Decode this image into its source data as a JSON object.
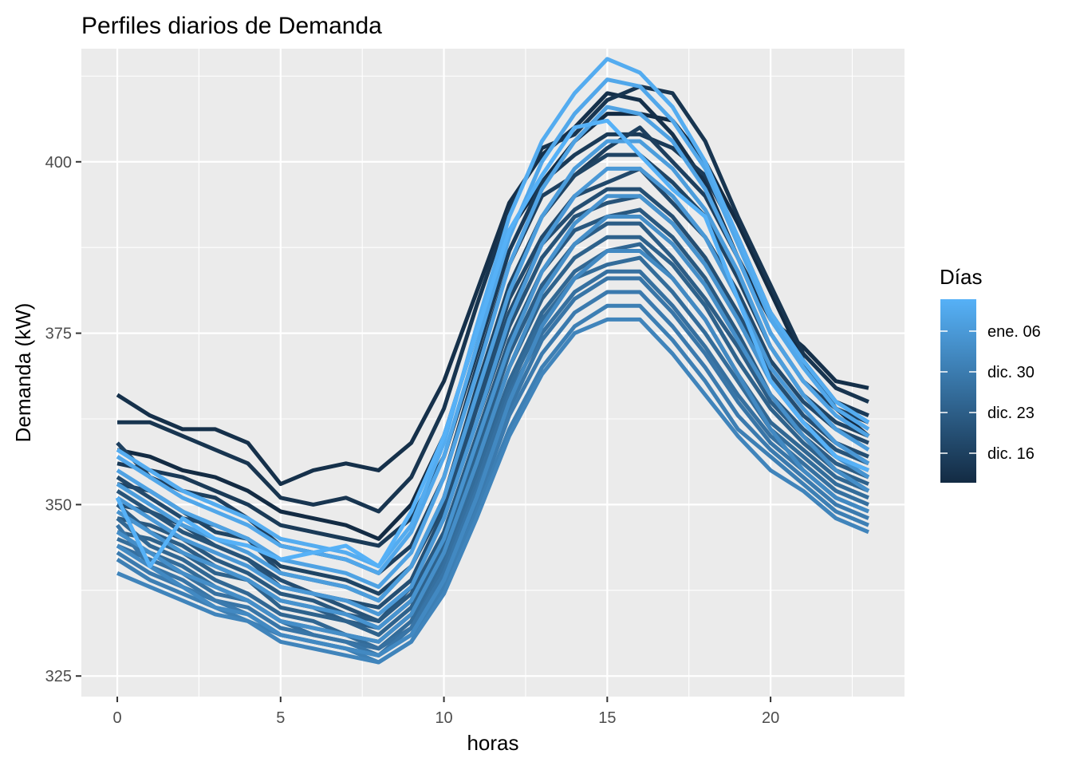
{
  "chart_data": {
    "type": "line",
    "title": "Perfiles diarios de Demanda",
    "xlabel": "horas",
    "ylabel": "Demanda (kW)",
    "xlim": [
      -1.1,
      24.1
    ],
    "ylim": [
      322,
      416.5
    ],
    "x_ticks": [
      0,
      5,
      10,
      15,
      20
    ],
    "y_ticks": [
      325,
      350,
      375,
      400
    ],
    "grid": true,
    "legend": {
      "title": "Días",
      "position": "right",
      "labels": [
        "dic. 16",
        "dic. 23",
        "dic. 30",
        "ene. 06"
      ],
      "color_low": "#132B43",
      "color_high": "#56B1F7"
    },
    "x": [
      0,
      1,
      2,
      3,
      4,
      5,
      6,
      7,
      8,
      9,
      10,
      11,
      12,
      13,
      14,
      15,
      16,
      17,
      18,
      19,
      20,
      21,
      22,
      23
    ],
    "series": [
      {
        "values": [
          358,
          357,
          355,
          354,
          352,
          349,
          348,
          347,
          345,
          350,
          360,
          375,
          390,
          397,
          403,
          407,
          407,
          406,
          400,
          391,
          381,
          371,
          364,
          360
        ]
      },
      {
        "values": [
          366,
          363,
          361,
          361,
          359,
          353,
          355,
          356,
          355,
          359,
          368,
          381,
          394,
          401,
          405,
          410,
          409,
          404,
          397,
          386,
          377,
          373,
          368,
          367
        ]
      },
      {
        "values": [
          362,
          362,
          360,
          358,
          356,
          351,
          350,
          351,
          349,
          354,
          364,
          379,
          393,
          402,
          404,
          409,
          411,
          410,
          403,
          392,
          382,
          372,
          367,
          365
        ]
      },
      {
        "values": [
          356,
          355,
          354,
          352,
          350,
          347,
          346,
          345,
          344,
          348,
          357,
          372,
          387,
          397,
          401,
          404,
          404,
          402,
          398,
          389,
          378,
          371,
          365,
          363
        ]
      },
      {
        "values": [
          359,
          354,
          352,
          351,
          348,
          344,
          343,
          342,
          340,
          344,
          354,
          370,
          385,
          395,
          398,
          402,
          405,
          400,
          395,
          386,
          375,
          368,
          364,
          362
        ]
      },
      {
        "values": [
          353,
          352,
          349,
          346,
          345,
          341,
          340,
          339,
          337,
          341,
          351,
          367,
          382,
          392,
          398,
          401,
          401,
          397,
          392,
          383,
          373,
          366,
          362,
          360
        ]
      },
      {
        "values": [
          354,
          351,
          348,
          347,
          345,
          340,
          339,
          338,
          336,
          341,
          350,
          365,
          380,
          389,
          395,
          397,
          399,
          394,
          389,
          381,
          371,
          365,
          361,
          359
        ]
      },
      {
        "values": [
          350,
          349,
          347,
          344,
          342,
          339,
          337,
          336,
          335,
          339,
          349,
          364,
          378,
          388,
          393,
          396,
          396,
          392,
          386,
          378,
          369,
          363,
          359,
          357
        ]
      },
      {
        "values": [
          352,
          349,
          346,
          344,
          342,
          338,
          337,
          335,
          333,
          338,
          348,
          362,
          376,
          386,
          392,
          394,
          395,
          391,
          385,
          377,
          368,
          362,
          358,
          356
        ]
      },
      {
        "values": [
          348,
          347,
          345,
          342,
          340,
          337,
          336,
          334,
          333,
          337,
          346,
          360,
          374,
          384,
          390,
          392,
          393,
          389,
          383,
          375,
          366,
          361,
          357,
          355
        ]
      },
      {
        "values": [
          350,
          346,
          344,
          341,
          339,
          336,
          335,
          333,
          332,
          336,
          345,
          358,
          372,
          382,
          388,
          391,
          391,
          386,
          380,
          373,
          365,
          360,
          356,
          354
        ]
      },
      {
        "values": [
          346,
          345,
          343,
          340,
          339,
          335,
          334,
          333,
          331,
          335,
          344,
          357,
          370,
          380,
          386,
          389,
          389,
          385,
          379,
          371,
          364,
          359,
          355,
          353
        ]
      },
      {
        "values": [
          348,
          344,
          342,
          339,
          337,
          334,
          333,
          331,
          330,
          334,
          343,
          355,
          368,
          378,
          384,
          387,
          388,
          383,
          377,
          369,
          362,
          358,
          354,
          352
        ]
      },
      {
        "values": [
          345,
          343,
          341,
          338,
          336,
          333,
          332,
          331,
          329,
          333,
          342,
          354,
          367,
          377,
          383,
          385,
          386,
          381,
          375,
          368,
          361,
          357,
          353,
          351
        ]
      },
      {
        "values": [
          344,
          342,
          340,
          337,
          336,
          333,
          331,
          330,
          329,
          332,
          341,
          353,
          366,
          375,
          381,
          384,
          384,
          379,
          373,
          366,
          360,
          356,
          352,
          350
        ]
      },
      {
        "values": [
          347,
          341,
          339,
          336,
          335,
          332,
          331,
          330,
          328,
          332,
          340,
          352,
          364,
          374,
          380,
          383,
          383,
          378,
          372,
          365,
          359,
          355,
          351,
          349
        ]
      },
      {
        "values": [
          343,
          340,
          338,
          336,
          334,
          331,
          330,
          329,
          328,
          331,
          339,
          350,
          363,
          372,
          378,
          381,
          381,
          376,
          370,
          363,
          358,
          354,
          350,
          348
        ]
      },
      {
        "values": [
          342,
          339,
          337,
          335,
          333,
          331,
          330,
          329,
          327,
          330,
          338,
          349,
          361,
          370,
          376,
          379,
          379,
          374,
          368,
          361,
          357,
          353,
          349,
          347
        ]
      },
      {
        "values": [
          340,
          338,
          336,
          334,
          333,
          330,
          329,
          328,
          327,
          330,
          337,
          348,
          360,
          369,
          375,
          377,
          377,
          372,
          366,
          360,
          355,
          352,
          348,
          346
        ]
      },
      {
        "values": [
          344,
          341,
          338,
          335,
          334,
          331,
          330,
          329,
          328,
          331,
          339,
          351,
          365,
          376,
          383,
          387,
          387,
          383,
          377,
          369,
          361,
          355,
          351,
          349
        ]
      },
      {
        "values": [
          346,
          343,
          340,
          338,
          336,
          333,
          332,
          331,
          330,
          334,
          343,
          356,
          370,
          381,
          388,
          392,
          392,
          388,
          382,
          374,
          366,
          360,
          355,
          352
        ]
      },
      {
        "values": [
          349,
          346,
          343,
          341,
          339,
          336,
          335,
          334,
          332,
          336,
          345,
          359,
          373,
          384,
          391,
          395,
          395,
          391,
          385,
          377,
          368,
          362,
          357,
          354
        ]
      },
      {
        "values": [
          351,
          348,
          345,
          343,
          341,
          338,
          337,
          336,
          334,
          338,
          348,
          362,
          377,
          388,
          395,
          399,
          399,
          395,
          389,
          380,
          370,
          364,
          359,
          356
        ]
      },
      {
        "values": [
          353,
          350,
          347,
          345,
          343,
          340,
          339,
          338,
          336,
          341,
          351,
          366,
          381,
          392,
          399,
          403,
          403,
          399,
          393,
          384,
          373,
          366,
          361,
          358
        ]
      },
      {
        "values": [
          355,
          352,
          349,
          347,
          345,
          342,
          341,
          340,
          338,
          343,
          354,
          369,
          385,
          396,
          403,
          408,
          407,
          403,
          396,
          386,
          375,
          368,
          363,
          360
        ]
      },
      {
        "values": [
          357,
          354,
          351,
          349,
          347,
          344,
          343,
          342,
          340,
          346,
          357,
          373,
          389,
          400,
          407,
          412,
          411,
          406,
          399,
          388,
          377,
          370,
          364,
          361
        ]
      },
      {
        "values": [
          358,
          355,
          352,
          350,
          348,
          345,
          344,
          343,
          341,
          347,
          359,
          376,
          392,
          403,
          410,
          415,
          413,
          408,
          400,
          389,
          378,
          371,
          365,
          362
        ]
      },
      {
        "values": [
          351,
          341,
          348,
          345,
          344,
          342,
          343,
          344,
          341,
          349,
          360,
          375,
          390,
          398,
          405,
          406,
          401,
          396,
          392,
          380,
          368,
          362,
          357,
          355
        ]
      }
    ]
  }
}
